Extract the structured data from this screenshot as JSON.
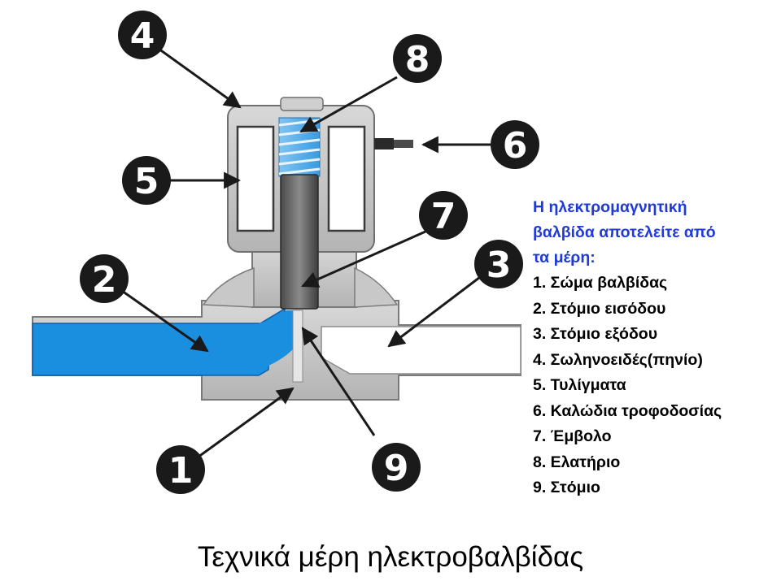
{
  "diagram": {
    "callouts": [
      {
        "label": "1"
      },
      {
        "label": "2"
      },
      {
        "label": "3"
      },
      {
        "label": "4"
      },
      {
        "label": "5"
      },
      {
        "label": "6"
      },
      {
        "label": "7"
      },
      {
        "label": "8"
      },
      {
        "label": "9"
      }
    ]
  },
  "legend": {
    "title_lines": [
      "Η ηλεκτρομαγνητική",
      "βαλβίδα αποτελείτε από",
      "τα μέρη:"
    ],
    "items": [
      " 1. Σώμα βαλβίδας",
      " 2. Στόμιο εισόδου",
      " 3. Στόμιο εξόδου",
      "4. Σωληνοειδές(πηνίο)",
      " 5. Τυλίγματα",
      " 6. Καλώδια τροφοδοσίας",
      "7. Έμβολο",
      " 8. Ελατήριο",
      " 9. Στόμιο"
    ]
  },
  "caption": "Τεχνικά μέρη ηλεκτροβαλβίδας",
  "colors": {
    "inlet_blue": "#1a8fe0",
    "body_gray": "#c4c4c4",
    "callout_fill": "#1a1a1a",
    "legend_title": "#1f3ad6"
  }
}
